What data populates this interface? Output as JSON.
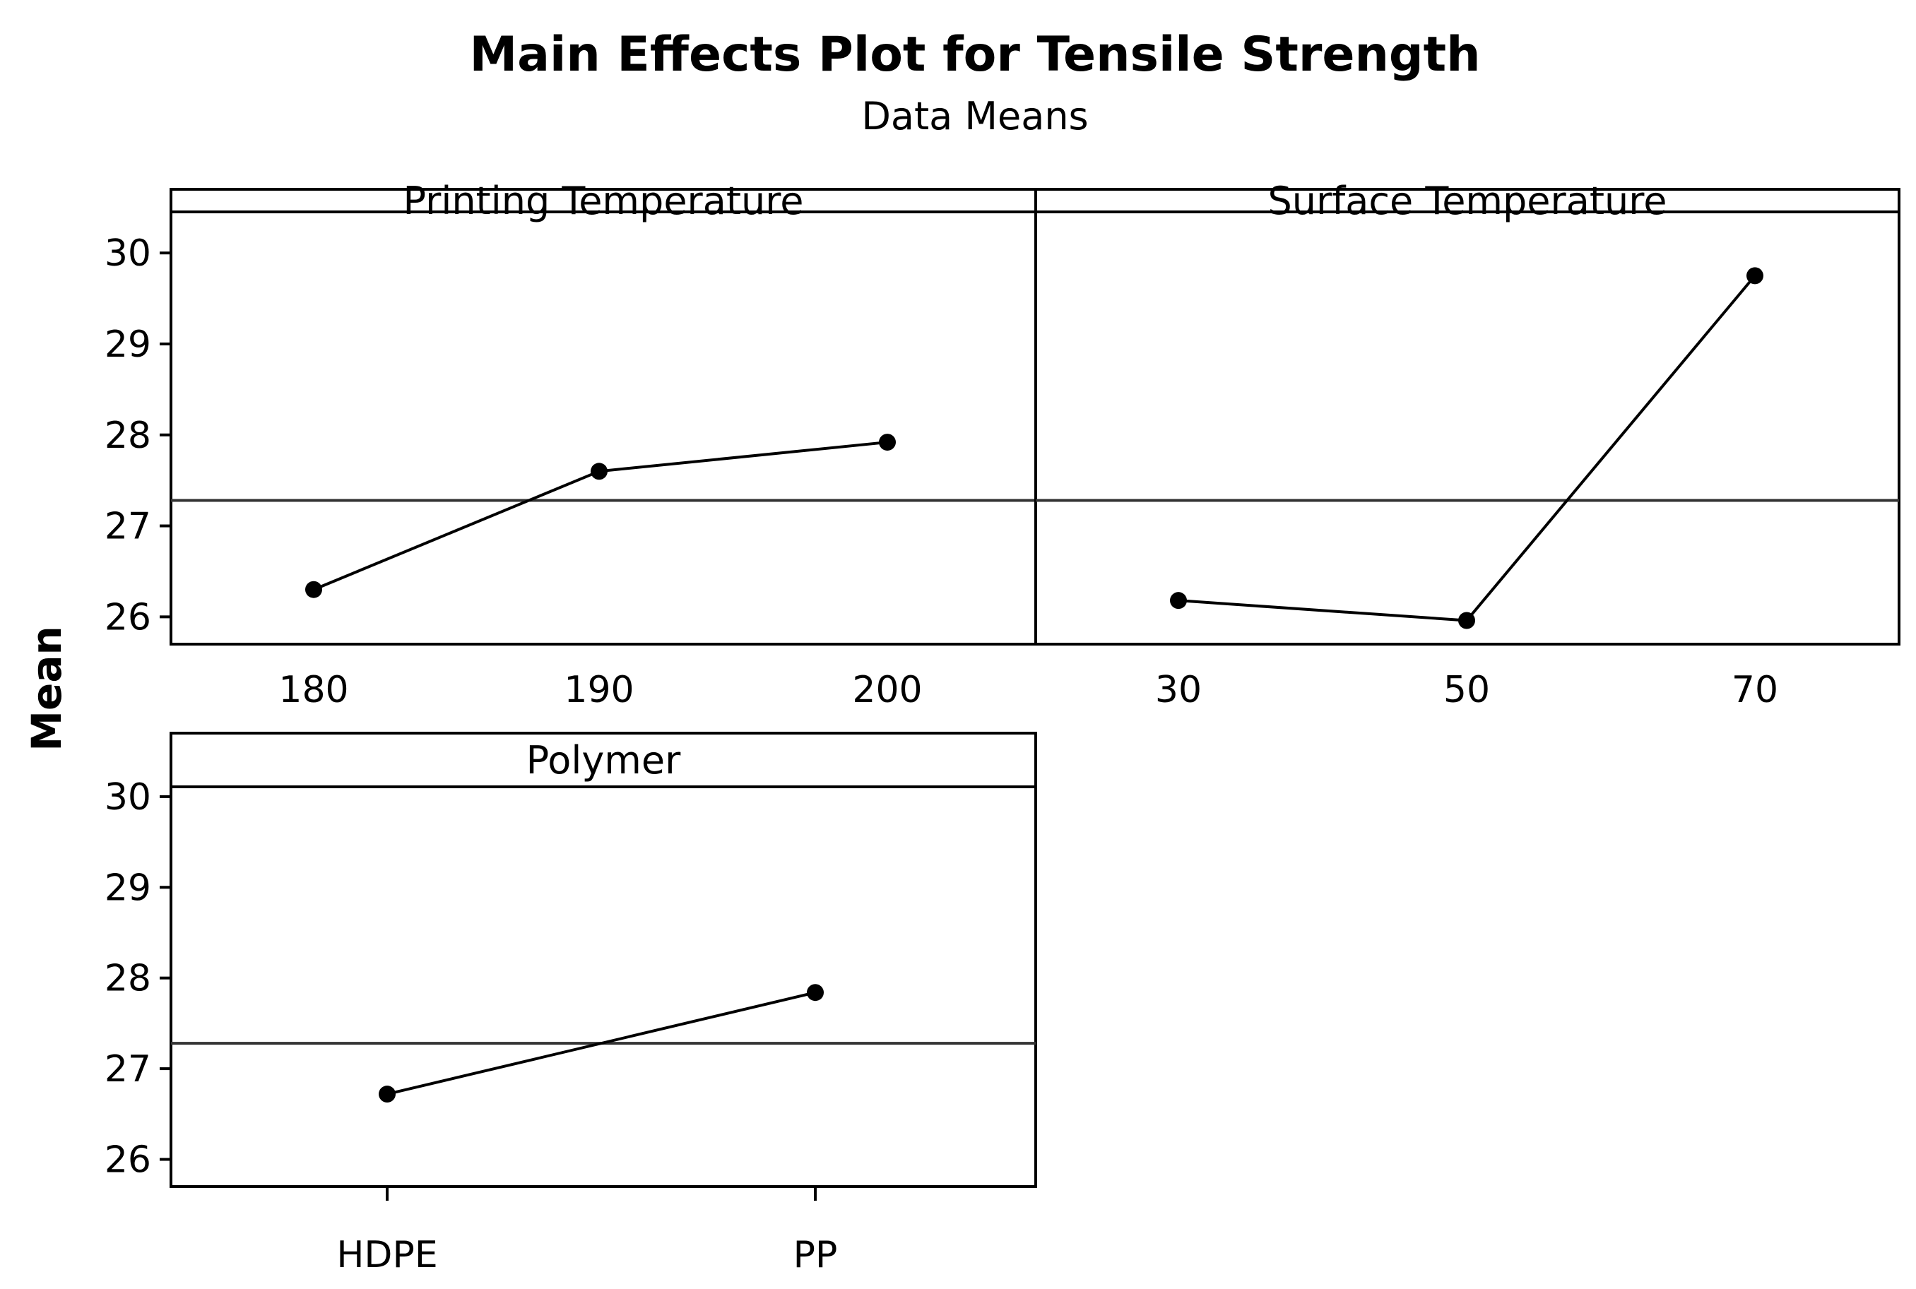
{
  "chart_data": {
    "type": "line",
    "title": "Main Effects Plot for Tensile Strength",
    "subtitle": "Data Means",
    "ylabel": "Mean",
    "ylim": [
      25.7,
      30.7
    ],
    "yticks": [
      26,
      27,
      28,
      29,
      30
    ],
    "overall_mean": 27.28,
    "panels": [
      {
        "name": "Printing Temperature",
        "categories": [
          "180",
          "190",
          "200"
        ],
        "values": [
          26.3,
          27.6,
          27.92
        ]
      },
      {
        "name": "Surface Temperature",
        "categories": [
          "30",
          "50",
          "70"
        ],
        "values": [
          26.18,
          25.96,
          29.75
        ]
      },
      {
        "name": "Polymer",
        "categories": [
          "HDPE",
          "PP"
        ],
        "values": [
          26.72,
          27.84
        ]
      }
    ],
    "colors": {
      "line": "#000000",
      "reference": "#333333",
      "frame": "#000000"
    }
  }
}
